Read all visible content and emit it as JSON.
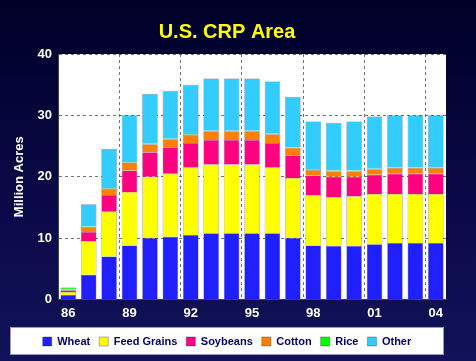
{
  "chart_data": {
    "type": "bar",
    "title": "U.S. CRP Area",
    "y_label": "Million Acres",
    "stacked": true,
    "grid": true,
    "legend": "bottom",
    "categories": [
      "86",
      null,
      null,
      "89",
      null,
      null,
      "92",
      null,
      null,
      "95",
      null,
      null,
      "98",
      null,
      null,
      "01",
      null,
      null,
      "04"
    ],
    "ylim": [
      0,
      40
    ],
    "yticks": [
      0,
      10,
      20,
      30,
      40
    ],
    "series": [
      {
        "name": "Wheat",
        "color": "#2020ff",
        "values": [
          0.7,
          4,
          7,
          8.8,
          10,
          10.2,
          10.5,
          10.8,
          10.8,
          10.8,
          10.8,
          10,
          8.8,
          8.7,
          8.7,
          9,
          9.2,
          9.2,
          9.2
        ]
      },
      {
        "name": "Feed Grains",
        "color": "#ffff00",
        "values": [
          0.5,
          5.5,
          7.3,
          8.7,
          10,
          10.3,
          11,
          11.2,
          11.2,
          11.2,
          10.7,
          9.8,
          8.2,
          8,
          8.1,
          8.2,
          8,
          8,
          8
        ]
      },
      {
        "name": "Soybeans",
        "color": "#ff0080",
        "values": [
          0.3,
          1.5,
          2.7,
          3.5,
          4,
          4.3,
          4,
          4,
          4,
          4,
          4,
          3.7,
          3.2,
          3.3,
          3.2,
          3.1,
          3.3,
          3.3,
          3.3
        ]
      },
      {
        "name": "Cotton",
        "color": "#ff8000",
        "values": [
          0.1,
          0.8,
          1,
          1.3,
          1.3,
          1.3,
          1.3,
          1.4,
          1.4,
          1.4,
          1.4,
          1.2,
          0.9,
          0.9,
          0.9,
          0.9,
          0.9,
          0.9,
          0.9
        ]
      },
      {
        "name": "Rice",
        "color": "#00ff00",
        "values": [
          0.3,
          0.1,
          0.1,
          0.1,
          0.1,
          0.1,
          0.1,
          0.1,
          0.1,
          0.1,
          0.1,
          0.1,
          0.1,
          0.1,
          0.1,
          0.1,
          0.1,
          0.1,
          0.1
        ]
      },
      {
        "name": "Other",
        "color": "#33ccff",
        "values": [
          0.1,
          3.6,
          6.4,
          7.6,
          8.1,
          7.8,
          8.1,
          8.5,
          8.5,
          8.5,
          8.5,
          8.2,
          7.8,
          7.8,
          8,
          8.5,
          8.5,
          8.5,
          8.5
        ]
      }
    ]
  }
}
